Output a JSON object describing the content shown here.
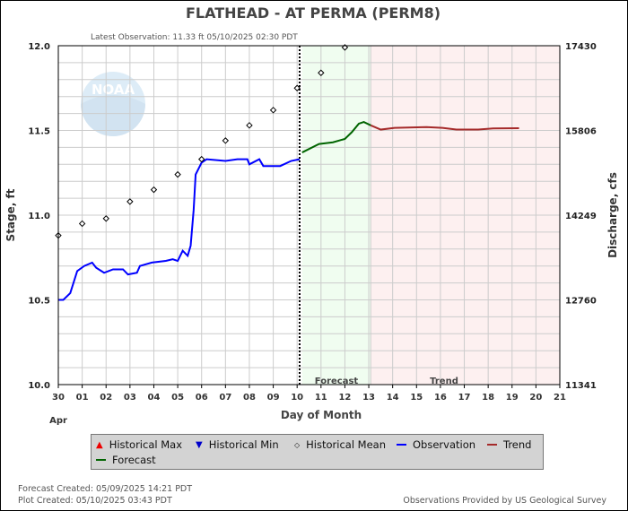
{
  "title": "FLATHEAD - AT PERMA  (PERM8)",
  "latest_observation": "Latest Observation: 11.33 ft 05/10/2025 02:30 PDT",
  "colors": {
    "observation": "#0000ff",
    "forecast": "#006400",
    "trend": "#a52a2a",
    "forecast_shade": "#f0fdf0",
    "trend_shade": "#fdf0f0",
    "grid": "#cccccc",
    "hist_max": "#ff0000",
    "hist_min": "#0000cc"
  },
  "chart_data": {
    "type": "line",
    "xlabel": "Day of Month",
    "ylabel": "Stage, ft",
    "y2label": "Discharge, cfs",
    "xlim": [
      "2025-04-30 00:00",
      "2025-05-21 00:00"
    ],
    "ylim": [
      10.0,
      12.0
    ],
    "grid": true,
    "x_tick_labels": [
      "30",
      "01",
      "02",
      "03",
      "04",
      "05",
      "06",
      "07",
      "08",
      "09",
      "10",
      "11",
      "12",
      "13",
      "14",
      "15",
      "16",
      "17",
      "18",
      "19",
      "20",
      "21"
    ],
    "x_month_label": "Apr",
    "y_ticks": [
      "10.0",
      "10.5",
      "11.0",
      "11.5",
      "12.0"
    ],
    "y2_ticks": [
      "11341",
      "12760",
      "14249",
      "15806",
      "17430"
    ],
    "forecast_region_label": "Forecast",
    "trend_region_label": "Trend",
    "forecast_region": [
      "2025-05-10 05:00",
      "2025-05-13 02:00"
    ],
    "trend_region": [
      "2025-05-13 02:00",
      "2025-05-21 00:00"
    ],
    "latest_obs_time": "2025-05-10 02:30",
    "series": [
      {
        "name": "Observation",
        "points": [
          [
            "2025-04-30 00:00",
            10.5
          ],
          [
            "2025-04-30 05:00",
            10.5
          ],
          [
            "2025-04-30 12:00",
            10.54
          ],
          [
            "2025-04-30 19:00",
            10.67
          ],
          [
            "2025-05-01 02:00",
            10.7
          ],
          [
            "2025-05-01 10:00",
            10.72
          ],
          [
            "2025-05-01 14:00",
            10.69
          ],
          [
            "2025-05-01 22:00",
            10.66
          ],
          [
            "2025-05-02 07:00",
            10.68
          ],
          [
            "2025-05-02 17:00",
            10.68
          ],
          [
            "2025-05-02 22:00",
            10.65
          ],
          [
            "2025-05-03 07:00",
            10.66
          ],
          [
            "2025-05-03 10:00",
            10.7
          ],
          [
            "2025-05-03 22:00",
            10.72
          ],
          [
            "2025-05-04 12:00",
            10.73
          ],
          [
            "2025-05-04 19:00",
            10.74
          ],
          [
            "2025-05-05 00:00",
            10.73
          ],
          [
            "2025-05-05 05:00",
            10.79
          ],
          [
            "2025-05-05 10:00",
            10.76
          ],
          [
            "2025-05-05 13:00",
            10.82
          ],
          [
            "2025-05-05 16:00",
            11.03
          ],
          [
            "2025-05-05 18:00",
            11.24
          ],
          [
            "2025-05-06 00:00",
            11.31
          ],
          [
            "2025-05-06 05:00",
            11.33
          ],
          [
            "2025-05-07 00:00",
            11.32
          ],
          [
            "2025-05-07 12:00",
            11.33
          ],
          [
            "2025-05-07 22:00",
            11.33
          ],
          [
            "2025-05-08 00:00",
            11.3
          ],
          [
            "2025-05-08 10:00",
            11.33
          ],
          [
            "2025-05-08 14:00",
            11.29
          ],
          [
            "2025-05-09 07:00",
            11.29
          ],
          [
            "2025-05-09 18:00",
            11.32
          ],
          [
            "2025-05-10 02:30",
            11.33
          ]
        ]
      },
      {
        "name": "Forecast",
        "points": [
          [
            "2025-05-10 05:00",
            11.37
          ],
          [
            "2025-05-10 22:00",
            11.42
          ],
          [
            "2025-05-11 12:00",
            11.43
          ],
          [
            "2025-05-12 00:00",
            11.45
          ],
          [
            "2025-05-12 07:00",
            11.49
          ],
          [
            "2025-05-12 14:00",
            11.54
          ],
          [
            "2025-05-12 19:00",
            11.55
          ],
          [
            "2025-05-13 02:00",
            11.53
          ]
        ]
      },
      {
        "name": "Trend",
        "points": [
          [
            "2025-05-13 02:00",
            11.53
          ],
          [
            "2025-05-13 12:00",
            11.505
          ],
          [
            "2025-05-14 02:00",
            11.515
          ],
          [
            "2025-05-15 10:00",
            11.52
          ],
          [
            "2025-05-16 02:00",
            11.515
          ],
          [
            "2025-05-16 16:00",
            11.505
          ],
          [
            "2025-05-17 14:00",
            11.505
          ],
          [
            "2025-05-18 05:00",
            11.512
          ],
          [
            "2025-05-19 07:00",
            11.513
          ]
        ]
      },
      {
        "name": "Historical Mean",
        "points": [
          [
            "2025-04-30 00:00",
            10.88
          ],
          [
            "2025-05-01 00:00",
            10.95
          ],
          [
            "2025-05-02 00:00",
            10.98
          ],
          [
            "2025-05-03 00:00",
            11.08
          ],
          [
            "2025-05-04 00:00",
            11.15
          ],
          [
            "2025-05-05 00:00",
            11.24
          ],
          [
            "2025-05-06 00:00",
            11.33
          ],
          [
            "2025-05-07 00:00",
            11.44
          ],
          [
            "2025-05-08 00:00",
            11.53
          ],
          [
            "2025-05-09 00:00",
            11.62
          ],
          [
            "2025-05-10 00:00",
            11.75
          ],
          [
            "2025-05-11 00:00",
            11.84
          ],
          [
            "2025-05-12 00:00",
            11.99
          ]
        ]
      }
    ]
  },
  "legend": {
    "hist_max": "Historical Max",
    "hist_min": "Historical Min",
    "hist_mean": "Historical Mean",
    "observation": "Observation",
    "trend": "Trend",
    "forecast": "Forecast"
  },
  "footer": {
    "forecast_created": "Forecast Created: 05/09/2025 14:21 PDT",
    "plot_created": "Plot Created: 05/10/2025 03:43 PDT",
    "source": "Observations Provided by US Geological Survey"
  },
  "logo_text": "NOAA"
}
